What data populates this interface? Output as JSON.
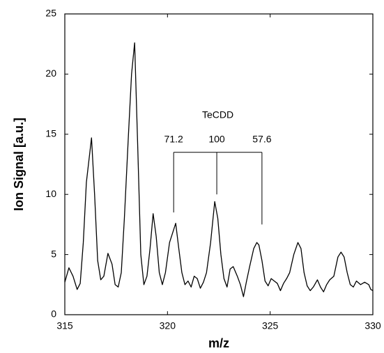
{
  "chart_data": {
    "type": "line",
    "xlabel": "m/z",
    "ylabel": "Ion Signal [a.u.]",
    "x": [
      315.0,
      315.2,
      315.4,
      315.6,
      315.75,
      315.9,
      316.05,
      316.3,
      316.45,
      316.6,
      316.75,
      316.9,
      317.1,
      317.3,
      317.45,
      317.6,
      317.75,
      317.9,
      318.1,
      318.25,
      318.4,
      318.55,
      318.7,
      318.85,
      319.0,
      319.15,
      319.3,
      319.45,
      319.6,
      319.75,
      319.9,
      320.1,
      320.4,
      320.55,
      320.7,
      320.85,
      321.0,
      321.15,
      321.3,
      321.45,
      321.6,
      321.75,
      321.9,
      322.1,
      322.3,
      322.45,
      322.6,
      322.75,
      322.9,
      323.05,
      323.2,
      323.4,
      323.55,
      323.7,
      323.85,
      324.0,
      324.2,
      324.35,
      324.45,
      324.6,
      324.75,
      324.9,
      325.05,
      325.2,
      325.35,
      325.5,
      325.65,
      325.8,
      325.95,
      326.15,
      326.35,
      326.5,
      326.65,
      326.8,
      326.95,
      327.1,
      327.3,
      327.45,
      327.6,
      327.75,
      327.9,
      328.1,
      328.3,
      328.45,
      328.6,
      328.75,
      328.9,
      329.05,
      329.2,
      329.4,
      329.6,
      329.8,
      329.9,
      330.0
    ],
    "values": [
      2.7,
      3.9,
      3.2,
      2.1,
      2.6,
      6,
      11,
      14.7,
      10,
      4.5,
      2.9,
      3.2,
      5.1,
      4.2,
      2.5,
      2.3,
      3.5,
      8,
      15,
      20,
      22.6,
      14,
      5,
      2.5,
      3.2,
      5.5,
      8.4,
      6.5,
      3.5,
      2.5,
      3.5,
      6,
      7.6,
      5.5,
      3.5,
      2.5,
      2.8,
      2.3,
      3.2,
      3.0,
      2.2,
      2.7,
      3.5,
      6,
      9.4,
      8,
      5,
      3,
      2.3,
      3.8,
      4,
      3.2,
      2.5,
      1.5,
      2.8,
      4,
      5.5,
      6,
      5.8,
      4.5,
      2.8,
      2.4,
      3.0,
      2.8,
      2.6,
      2.0,
      2.6,
      3.0,
      3.5,
      5,
      6,
      5.5,
      3.5,
      2.4,
      2.0,
      2.3,
      2.9,
      2.3,
      1.9,
      2.5,
      2.9,
      3.2,
      4.8,
      5.2,
      4.8,
      3.5,
      2.5,
      2.3,
      2.8,
      2.5,
      2.7,
      2.5,
      2.1,
      2.0
    ],
    "color": "#000000",
    "xlim": [
      315,
      330
    ],
    "xticks": [
      315,
      320,
      325,
      330
    ],
    "ylim": [
      0,
      25
    ],
    "yticks": [
      0,
      5,
      10,
      15,
      20,
      25
    ],
    "grid": false,
    "annotation": {
      "text": "TeCDD",
      "bracket_y": 13.5,
      "peaks": [
        {
          "label": "71.2",
          "x": 320.3,
          "y": 8.5
        },
        {
          "label": "100",
          "x": 322.4,
          "y": 10
        },
        {
          "label": "57.6",
          "x": 324.6,
          "y": 7.5
        }
      ]
    }
  }
}
